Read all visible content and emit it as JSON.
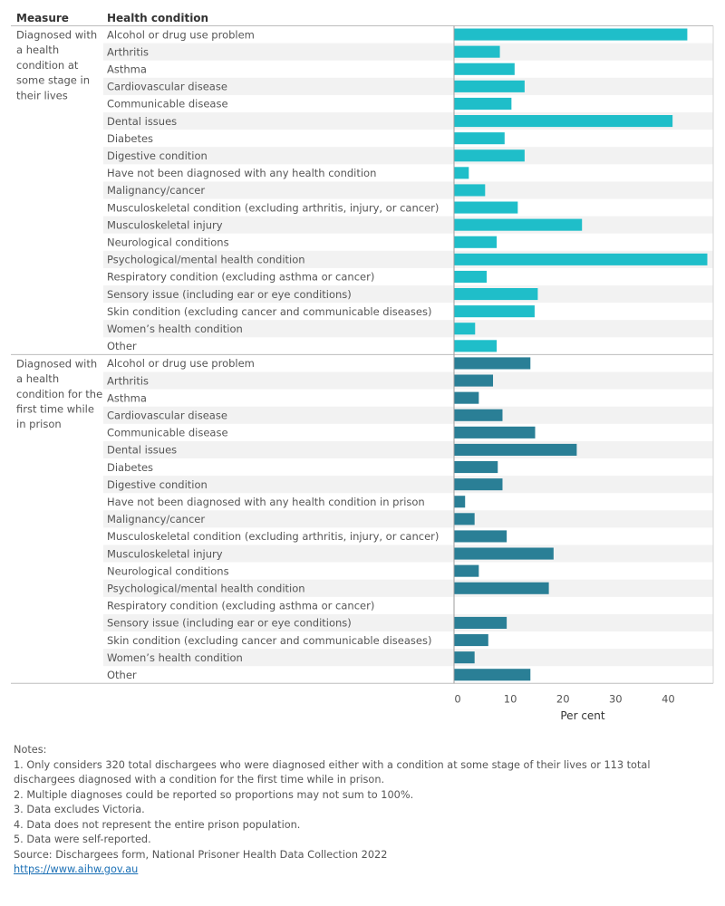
{
  "chart_data": {
    "type": "bar",
    "orientation": "horizontal",
    "column_headers": [
      "Measure",
      "Health condition"
    ],
    "xlabel": "Per cent",
    "xlim": [
      0,
      47
    ],
    "x_ticks": [
      0,
      10,
      20,
      30,
      40
    ],
    "colors": {
      "group1": "#1fbec9",
      "group2": "#2a7f96"
    },
    "groups": [
      {
        "measure": "Diagnosed with a health condition at some stage in their lives",
        "measure_lines": [
          "Diagnosed with",
          "a health",
          "condition at",
          "some stage in",
          "their lives"
        ],
        "color": "#1fbec9",
        "categories": [
          "Alcohol or drug use problem",
          "Arthritis",
          "Asthma",
          "Cardiovascular disease",
          "Communicable disease",
          "Dental issues",
          "Diabetes",
          "Digestive condition",
          "Have not been diagnosed with any health condition",
          "Malignancy/cancer",
          "Musculoskeletal condition (excluding arthritis, injury, or cancer)",
          "Musculoskeletal injury",
          "Neurological conditions",
          "Psychological/mental health condition",
          "Respiratory condition (excluding asthma or cancer)",
          "Sensory issue (including ear or eye conditions)",
          "Skin condition (excluding cancer and communicable diseases)",
          "Women’s health condition",
          "Other"
        ],
        "values": [
          43.1,
          7.5,
          10.3,
          12.2,
          9.7,
          40.3,
          8.4,
          12.2,
          1.6,
          4.7,
          10.9,
          23.1,
          6.9,
          46.9,
          5.0,
          14.7,
          14.1,
          2.8,
          6.9
        ]
      },
      {
        "measure": "Diagnosed with a health condition for the first time while in prison",
        "measure_lines": [
          "Diagnosed with",
          "a health",
          "condition for the",
          "first time while",
          "in prison"
        ],
        "color": "#2a7f96",
        "categories": [
          "Alcohol or drug use problem",
          "Arthritis",
          "Asthma",
          "Cardiovascular disease",
          "Communicable disease",
          "Dental issues",
          "Diabetes",
          "Digestive condition",
          "Have not been diagnosed with any health condition in prison",
          "Malignancy/cancer",
          "Musculoskeletal condition (excluding arthritis, injury, or cancer)",
          "Musculoskeletal injury",
          "Neurological conditions",
          "Psychological/mental health condition",
          "Respiratory condition (excluding asthma or cancer)",
          "Sensory issue (including ear or eye conditions)",
          "Skin condition (excluding cancer and communicable diseases)",
          "Women’s health condition",
          "Other"
        ],
        "values": [
          13.3,
          6.2,
          3.5,
          8.0,
          14.2,
          22.1,
          7.1,
          8.0,
          0.9,
          2.7,
          8.8,
          17.7,
          3.5,
          16.8,
          0.0,
          8.8,
          5.3,
          2.7,
          13.3
        ]
      }
    ]
  },
  "notes": {
    "heading": "Notes:",
    "items": [
      "1. Only considers 320 total dischargees who were diagnosed either with a condition at some stage of their lives or 113 total dischargees diagnosed with a condition for the first time while in prison.",
      "2. Multiple diagnoses could be reported so proportions may not sum to 100%.",
      "3. Data excludes Victoria.",
      "4. Data does not represent the entire prison population.",
      "5. Data were self-reported."
    ],
    "source": "Source: Dischargees form, National Prisoner Health Data Collection 2022",
    "link": "https://www.aihw.gov.au"
  }
}
